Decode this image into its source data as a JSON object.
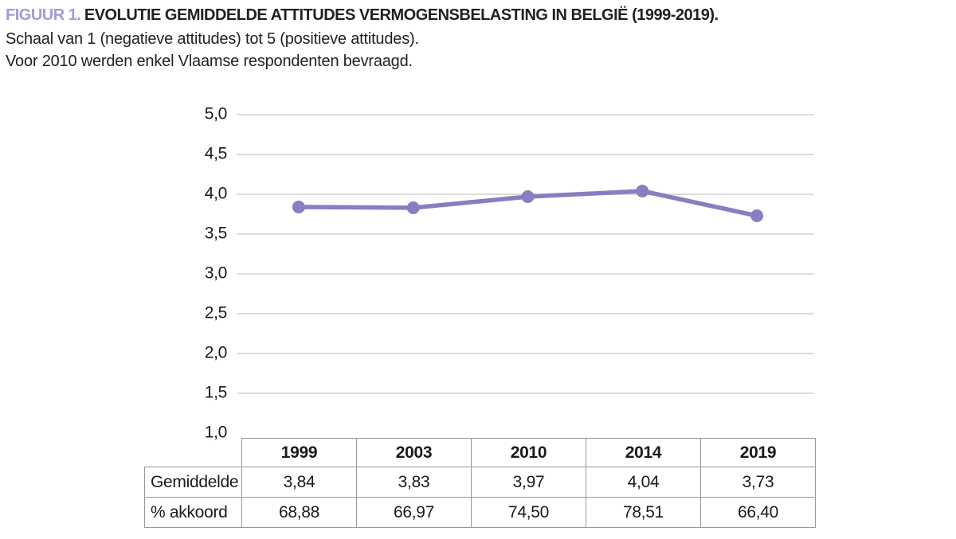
{
  "figure": {
    "label": "FIGUUR 1.",
    "title": "EVOLUTIE GEMIDDELDE ATTITUDES VERMOGENSBELASTING IN BELGIË (1999-2019).",
    "subtitle_scale": "Schaal van 1 (negatieve attitudes) tot 5 (positieve attitudes).",
    "subtitle_note": "Voor 2010 werden enkel Vlaamse respondenten bevraagd."
  },
  "colors": {
    "line_purple": "#8a7dc2",
    "figure_label_purple": "#a49bd1",
    "gridline_gray": "#dcdcdc",
    "table_border_gray": "#989898",
    "text_black": "#1a1a1a"
  },
  "chart_data": {
    "type": "line",
    "title": "Evolutie gemiddelde attitudes vermogensbelasting in België (1999-2019)",
    "categories": [
      "1999",
      "2003",
      "2010",
      "2014",
      "2019"
    ],
    "series": [
      {
        "name": "Gemiddelde",
        "values": [
          3.84,
          3.83,
          3.97,
          4.04,
          3.73
        ]
      }
    ],
    "xlabel": "",
    "ylabel": "",
    "ylim": [
      1.0,
      5.0
    ],
    "ytick_step": 0.5,
    "ytick_labels": [
      "5,0",
      "4,5",
      "4,0",
      "3,5",
      "3,0",
      "2,5",
      "2,0",
      "1,5",
      "1,0"
    ],
    "grid": true,
    "legend_position": "none",
    "line_color": "#8a7dc2",
    "marker": "circle"
  },
  "table": {
    "corner_label": "",
    "col_headers": [
      "1999",
      "2003",
      "2010",
      "2014",
      "2019"
    ],
    "rows": [
      {
        "label": "Gemiddelde",
        "values": [
          "3,84",
          "3,83",
          "3,97",
          "4,04",
          "3,73"
        ]
      },
      {
        "label": "% akkoord",
        "values": [
          "68,88",
          "66,97",
          "74,50",
          "78,51",
          "66,40"
        ]
      }
    ]
  }
}
